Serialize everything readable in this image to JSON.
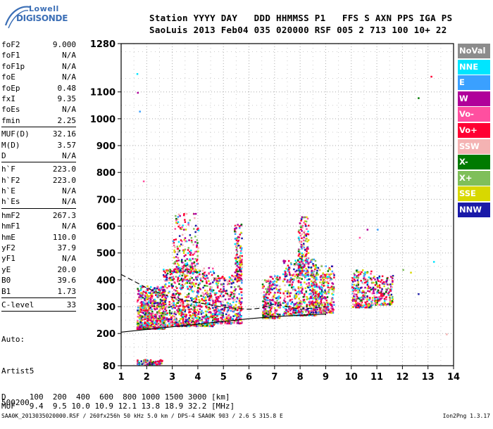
{
  "logo": {
    "top": "Lowell",
    "bottom": "DIGISONDE"
  },
  "header": {
    "row1": "Station YYYY DAY   DDD HHMMSS P1   FFS S AXN PPS IGA PS",
    "row2": "SaoLuis 2013 Feb04 035 020000 RSF 005 2 713 100 10+ 22"
  },
  "params": [
    {
      "name": "foF2",
      "value": "9.000"
    },
    {
      "name": "foF1",
      "value": "N/A"
    },
    {
      "name": "foF1p",
      "value": "N/A"
    },
    {
      "name": "foE",
      "value": "N/A"
    },
    {
      "name": "foEp",
      "value": "0.48"
    },
    {
      "name": "fxI",
      "value": "9.35"
    },
    {
      "name": "foEs",
      "value": "N/A"
    },
    {
      "name": "fmin",
      "value": "2.25"
    },
    {
      "sep": true
    },
    {
      "name": "MUF(D)",
      "value": "32.16"
    },
    {
      "name": "M(D)",
      "value": "3.57"
    },
    {
      "name": "D",
      "value": "N/A"
    },
    {
      "sep": true
    },
    {
      "name": "h`F",
      "value": "223.0"
    },
    {
      "name": "h`F2",
      "value": "223.0"
    },
    {
      "name": "h`E",
      "value": "N/A"
    },
    {
      "name": "h`Es",
      "value": "N/A"
    },
    {
      "sep": true
    },
    {
      "name": "hmF2",
      "value": "267.3"
    },
    {
      "name": "hmF1",
      "value": "N/A"
    },
    {
      "name": "hmE",
      "value": "110.0"
    },
    {
      "name": "yF2",
      "value": "37.9"
    },
    {
      "name": "yF1",
      "value": "N/A"
    },
    {
      "name": "yE",
      "value": "20.0"
    },
    {
      "name": "B0",
      "value": "39.6"
    },
    {
      "name": "B1",
      "value": "1.73"
    },
    {
      "sep": true
    },
    {
      "name": "C-level",
      "value": "33"
    },
    {
      "sep": true
    }
  ],
  "auto": {
    "line1": "Auto:",
    "line2": "Artist5",
    "line3": "500200"
  },
  "legend": [
    {
      "label": "NoVal",
      "color": "#8c8c8c"
    },
    {
      "label": "NNE",
      "color": "#00e5ff"
    },
    {
      "label": "E",
      "color": "#3aa0ff"
    },
    {
      "label": "W",
      "color": "#b0009a"
    },
    {
      "label": "Vo-",
      "color": "#ff4fa0"
    },
    {
      "label": "Vo+",
      "color": "#ff0033"
    },
    {
      "label": "SSW",
      "color": "#f4b3b3"
    },
    {
      "label": "X-",
      "color": "#007a00"
    },
    {
      "label": "X+",
      "color": "#7fbf5a"
    },
    {
      "label": "SSE",
      "color": "#d8d800"
    },
    {
      "label": "NNW",
      "color": "#1a1aa8"
    }
  ],
  "bottom": {
    "line1": "D     100  200  400  600  800 1000 1500 3000 [km]",
    "line2": "MUF   9.4  9.5 10.0 10.9 12.1 13.8 18.9 32.2 [MHz]"
  },
  "footer": {
    "left": "SAA0K_2013035020000.RSF / 260fx256h 50 kHz 5.0 km / DPS-4 SAA0K 903 / 2.6 S 315.8 E",
    "right": "Ion2Png 1.3.17"
  },
  "chart_data": {
    "type": "scatter",
    "xlabel": "",
    "ylabel": "",
    "xlim": [
      1,
      14
    ],
    "ylim": [
      80,
      1280
    ],
    "x_ticks": [
      1,
      2,
      3,
      4,
      5,
      6,
      7,
      8,
      9,
      10,
      11,
      12,
      13,
      14
    ],
    "y_ticks": [
      80,
      200,
      300,
      400,
      500,
      600,
      700,
      800,
      900,
      1000,
      1100,
      1280
    ],
    "grid": true,
    "trace_profile": {
      "name": "",
      "x": [
        1.0,
        2.0,
        3.0,
        4.0,
        5.0,
        6.0,
        7.0,
        8.0,
        9.0,
        9.0
      ],
      "y": [
        205,
        215,
        225,
        235,
        245,
        255,
        263,
        268,
        272,
        268
      ]
    },
    "trace_virtual": {
      "name": "",
      "x": [
        1.0,
        1.5,
        2.0,
        2.5,
        3.0,
        4.0,
        5.0,
        6.0,
        6.5,
        7.0,
        7.5,
        8.0,
        8.5,
        9.0
      ],
      "y": [
        420,
        395,
        370,
        350,
        335,
        315,
        298,
        290,
        295,
        310,
        300,
        290,
        295,
        300
      ]
    },
    "clusters": [
      {
        "x": [
          1.6,
          2.1
        ],
        "y": [
          220,
          380
        ],
        "weight": 1.0
      },
      {
        "x": [
          2.1,
          2.7
        ],
        "y": [
          220,
          380
        ],
        "weight": 1.0
      },
      {
        "x": [
          2.6,
          3.6
        ],
        "y": [
          230,
          450
        ],
        "weight": 1.2
      },
      {
        "x": [
          3.0,
          4.0
        ],
        "y": [
          430,
          650
        ],
        "weight": 0.6
      },
      {
        "x": [
          3.6,
          4.6
        ],
        "y": [
          230,
          450
        ],
        "weight": 1.2
      },
      {
        "x": [
          4.6,
          5.7
        ],
        "y": [
          240,
          420
        ],
        "weight": 1.1
      },
      {
        "x": [
          5.4,
          5.7
        ],
        "y": [
          400,
          620
        ],
        "weight": 0.4
      },
      {
        "x": [
          6.5,
          7.2
        ],
        "y": [
          260,
          420
        ],
        "weight": 0.8
      },
      {
        "x": [
          7.3,
          8.6
        ],
        "y": [
          270,
          480
        ],
        "weight": 1.3
      },
      {
        "x": [
          7.9,
          8.3
        ],
        "y": [
          420,
          640
        ],
        "weight": 0.5
      },
      {
        "x": [
          8.4,
          9.3
        ],
        "y": [
          280,
          460
        ],
        "weight": 1.0
      },
      {
        "x": [
          10.0,
          10.8
        ],
        "y": [
          300,
          440
        ],
        "weight": 0.7
      },
      {
        "x": [
          10.8,
          11.6
        ],
        "y": [
          310,
          420
        ],
        "weight": 0.5
      },
      {
        "x": [
          1.6,
          2.6
        ],
        "y": [
          88,
          105
        ],
        "weight": 0.3
      }
    ],
    "sparse_points": [
      {
        "x": 1.6,
        "y": 1170
      },
      {
        "x": 1.7,
        "y": 1030
      },
      {
        "x": 1.62,
        "y": 1100
      },
      {
        "x": 1.85,
        "y": 770
      },
      {
        "x": 13.1,
        "y": 1160
      },
      {
        "x": 13.7,
        "y": 200
      },
      {
        "x": 12.6,
        "y": 1080
      },
      {
        "x": 12.0,
        "y": 440
      },
      {
        "x": 12.3,
        "y": 430
      },
      {
        "x": 12.6,
        "y": 350
      },
      {
        "x": 13.2,
        "y": 470
      },
      {
        "x": 11.0,
        "y": 590
      },
      {
        "x": 10.6,
        "y": 590
      },
      {
        "x": 10.3,
        "y": 560
      },
      {
        "x": 2.3,
        "y": 95
      },
      {
        "x": 1.9,
        "y": 90
      }
    ]
  }
}
